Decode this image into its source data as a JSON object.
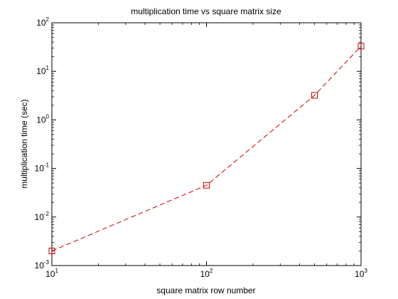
{
  "chart_data": {
    "type": "line",
    "title": "multiplication time vs square matrix size",
    "xlabel": "square matrix row number",
    "ylabel": "multiplication time (sec)",
    "x_scale": "log",
    "y_scale": "log",
    "xlim": [
      10,
      1000
    ],
    "ylim": [
      0.001,
      100
    ],
    "x_ticks": [
      {
        "base": "10",
        "exp": "1",
        "value": 10
      },
      {
        "base": "10",
        "exp": "2",
        "value": 100
      },
      {
        "base": "10",
        "exp": "3",
        "value": 1000
      }
    ],
    "y_ticks": [
      {
        "base": "10",
        "exp": "-3",
        "value": 0.001
      },
      {
        "base": "10",
        "exp": "-2",
        "value": 0.01
      },
      {
        "base": "10",
        "exp": "-1",
        "value": 0.1
      },
      {
        "base": "10",
        "exp": "0",
        "value": 1
      },
      {
        "base": "10",
        "exp": "1",
        "value": 10
      },
      {
        "base": "10",
        "exp": "2",
        "value": 100
      }
    ],
    "grid": false,
    "series": [
      {
        "color": "#cc0000",
        "line_style": "dashed",
        "marker": "square",
        "x": [
          10,
          100,
          500,
          1000
        ],
        "y": [
          0.002,
          0.045,
          3.2,
          33
        ]
      }
    ]
  }
}
